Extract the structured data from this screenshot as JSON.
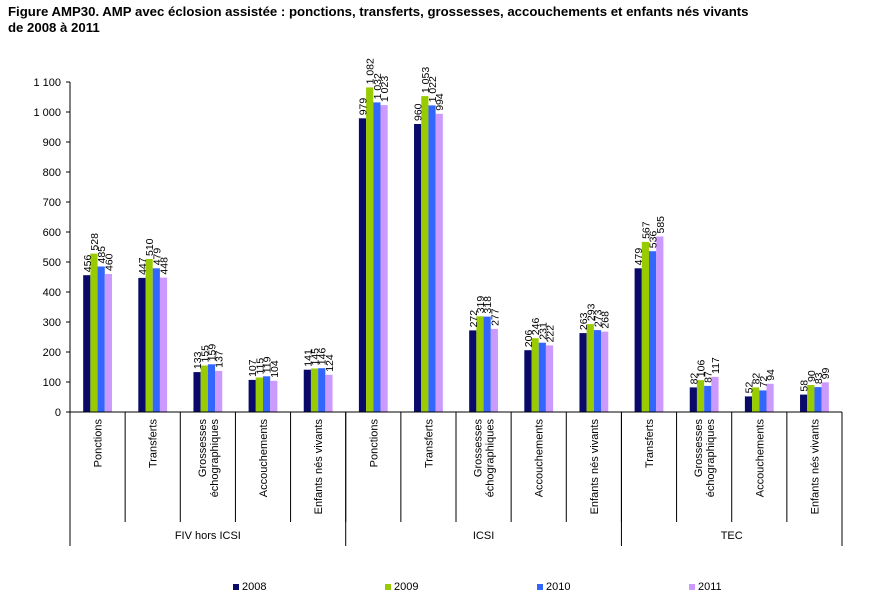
{
  "title_line1": "Figure AMP30. AMP avec éclosion assistée : ponctions, transferts, grossesses, accouchements et enfants nés vivants",
  "title_line2": "de 2008 à 2011",
  "colors": {
    "2008": "#0a0a6b",
    "2009": "#99cc00",
    "2010": "#3366ff",
    "2011": "#cc99ff"
  },
  "chart_data": {
    "type": "bar",
    "title": "Figure AMP30. AMP avec éclosion assistée : ponctions, transferts, grossesses, accouchements et enfants nés vivants de 2008 à 2011",
    "ylim": [
      0,
      1100
    ],
    "yticks": [
      "0",
      "100",
      "200",
      "300",
      "400",
      "500",
      "600",
      "700",
      "800",
      "900",
      "1 000",
      "1 100"
    ],
    "grid": false,
    "legend_position": "bottom",
    "groups": [
      {
        "name": "FIV hors ICSI",
        "categories": [
          "Ponctions",
          "Transferts",
          "Grossesses échographiques",
          "Accouchements",
          "Enfants nés vivants"
        ]
      },
      {
        "name": "ICSI",
        "categories": [
          "Ponctions",
          "Transferts",
          "Grossesses échographiques",
          "Accouchements",
          "Enfants nés vivants"
        ]
      },
      {
        "name": "TEC",
        "categories": [
          "Transferts",
          "Grossesses échographiques",
          "Accouchements",
          "Enfants nés vivants"
        ]
      }
    ],
    "categories": [
      "Ponctions",
      "Transferts",
      "Grossesses échographiques",
      "Accouchements",
      "Enfants nés vivants",
      "Ponctions",
      "Transferts",
      "Grossesses échographiques",
      "Accouchements",
      "Enfants nés vivants",
      "Transferts",
      "Grossesses échographiques",
      "Accouchements",
      "Enfants nés vivants"
    ],
    "series": [
      {
        "name": "2008",
        "values": [
          456,
          447,
          133,
          107,
          141,
          979,
          960,
          272,
          206,
          263,
          479,
          82,
          52,
          58
        ],
        "labels": [
          "456",
          "447",
          "133",
          "107",
          "141",
          "979",
          "960",
          "272",
          "206",
          "263",
          "479",
          "82",
          "52",
          "58"
        ]
      },
      {
        "name": "2009",
        "values": [
          528,
          510,
          155,
          115,
          145,
          1082,
          1053,
          319,
          246,
          293,
          567,
          106,
          82,
          90
        ],
        "labels": [
          "528",
          "510",
          "155",
          "115",
          "145",
          "1 082",
          "1 053",
          "319",
          "246",
          "293",
          "567",
          "106",
          "82",
          "90"
        ]
      },
      {
        "name": "2010",
        "values": [
          485,
          479,
          159,
          119,
          146,
          1032,
          1022,
          318,
          231,
          273,
          536,
          87,
          72,
          83
        ],
        "labels": [
          "485",
          "479",
          "159",
          "119",
          "146",
          "1 032",
          "1 022",
          "318",
          "231",
          "273",
          "536",
          "87",
          "72",
          "83"
        ]
      },
      {
        "name": "2011",
        "values": [
          460,
          448,
          137,
          104,
          124,
          1023,
          994,
          277,
          222,
          268,
          585,
          117,
          94,
          99
        ],
        "labels": [
          "460",
          "448",
          "137",
          "104",
          "124",
          "1 023",
          "994",
          "277",
          "222",
          "268",
          "585",
          "117",
          "94",
          "99"
        ]
      }
    ]
  }
}
